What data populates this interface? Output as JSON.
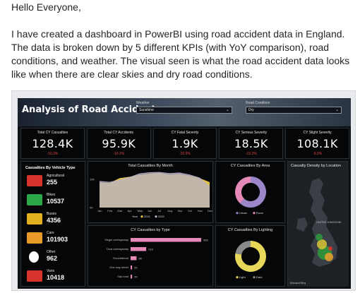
{
  "post": {
    "greeting": "Hello Everyone,",
    "body": "I have created a dashboard in PowerBI using road accident data in England. The data is broken down by 5 different KPIs (with YoY comparison), road conditions, and weather. The visual seen is what the road accident data looks like when there are clear skies and dry road conditions."
  },
  "dashboard": {
    "title": "Analysis of Road Accidents",
    "weather_label": "Weather",
    "weather_value": "Sunshine",
    "road_label": "Road Condition",
    "road_value": "Dry"
  },
  "kpis": [
    {
      "label": "Total CY Casualties",
      "value": "128.4K",
      "change": "-10.3%"
    },
    {
      "label": "Total CY Accidents",
      "value": "95.9K",
      "change": "-10.1%"
    },
    {
      "label": "CY Fatal Severity",
      "value": "1.9K",
      "change": "-20.9%"
    },
    {
      "label": "CY Serious Severity",
      "value": "18.5K",
      "change": "-13.2%"
    },
    {
      "label": "CY Slight Severity",
      "value": "108.1K",
      "change": "-9.2%"
    }
  ],
  "vehicles": {
    "title": "Casualties By Vehicle Type",
    "items": [
      {
        "name": "Agricultural",
        "value": "255",
        "color": "#d9342b"
      },
      {
        "name": "Bikes",
        "value": "10537",
        "color": "#2aa84a"
      },
      {
        "name": "Buses",
        "value": "4356",
        "color": "#e0b020"
      },
      {
        "name": "Cars",
        "value": "101903",
        "color": "#e89a28"
      },
      {
        "name": "Other",
        "value": "962",
        "color": "#ffffff"
      },
      {
        "name": "Vans",
        "value": "10418",
        "color": "#d9342b"
      }
    ]
  },
  "chart_data": [
    {
      "type": "area",
      "title": "Total Casualties By Month",
      "categories": [
        "Jan",
        "Feb",
        "Mar",
        "Apr",
        "May",
        "Jun",
        "Jul",
        "Aug",
        "Sep",
        "Oct",
        "Nov",
        "Dec"
      ],
      "y_ticks": [
        "10K",
        "0K"
      ],
      "ylim": [
        0,
        13000
      ],
      "legend_label": "Year",
      "legend_placement": "bottom",
      "series": [
        {
          "name": "2021",
          "color": "#e8c84a",
          "values": [
            8800,
            8600,
            10300,
            10800,
            11500,
            11900,
            12200,
            11600,
            11800,
            11200,
            10300,
            8900
          ]
        },
        {
          "name": "2022",
          "color": "#b9b2cc",
          "values": [
            9300,
            9000,
            9700,
            10700,
            12000,
            12400,
            12500,
            12100,
            12300,
            11600,
            10500,
            7400
          ]
        }
      ]
    },
    {
      "type": "pie",
      "title": "CY Casualties By Area",
      "legend_placement": "bottom",
      "series": [
        {
          "name": "Urban",
          "color": "#9a86c9",
          "value": 62
        },
        {
          "name": "Rural",
          "color": "#e58ab8",
          "value": 38
        }
      ]
    },
    {
      "type": "bar",
      "title": "CY Casualties by Type",
      "categories": [
        "Single carriageway",
        "Dual carriageway",
        "Roundabout",
        "One way street",
        "Slip road"
      ],
      "values": [
        95000,
        21000,
        8000,
        2000,
        2000
      ],
      "data_labels": [
        "95K",
        "21K",
        "8K",
        "2K",
        "2K"
      ],
      "color": "#e58ab8"
    },
    {
      "type": "pie",
      "title": "CY Casualties By Lighting",
      "legend_placement": "bottom",
      "series": [
        {
          "name": "Light",
          "color": "#e8d85a",
          "value": 78
        },
        {
          "name": "Dark",
          "color": "#8a8a8a",
          "value": 22
        }
      ]
    }
  ],
  "map": {
    "title": "Casualty Density by Location",
    "label": "UNITED KINGDOM",
    "footer": "Microsoft Bing"
  }
}
